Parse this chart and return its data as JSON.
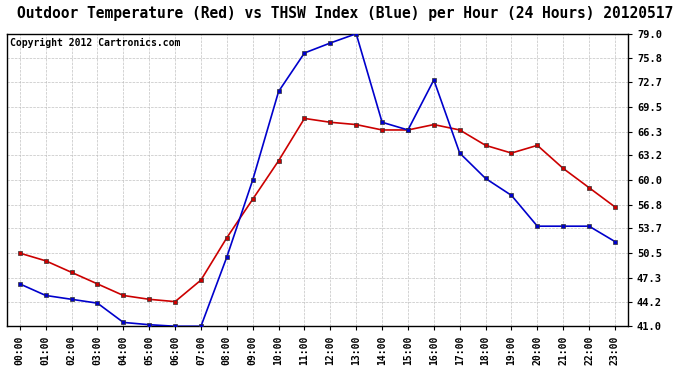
{
  "title": "Outdoor Temperature (Red) vs THSW Index (Blue) per Hour (24 Hours) 20120517",
  "copyright": "Copyright 2012 Cartronics.com",
  "hours": [
    "00:00",
    "01:00",
    "02:00",
    "03:00",
    "04:00",
    "05:00",
    "06:00",
    "07:00",
    "08:00",
    "09:00",
    "10:00",
    "11:00",
    "12:00",
    "13:00",
    "14:00",
    "15:00",
    "16:00",
    "17:00",
    "18:00",
    "19:00",
    "20:00",
    "21:00",
    "22:00",
    "23:00"
  ],
  "red_temp": [
    50.5,
    49.5,
    48.0,
    46.5,
    45.0,
    44.5,
    44.2,
    47.0,
    52.5,
    57.5,
    62.5,
    68.0,
    67.5,
    67.2,
    66.5,
    66.5,
    67.2,
    66.5,
    64.5,
    63.5,
    64.5,
    61.5,
    59.0,
    56.5
  ],
  "blue_thsw": [
    46.5,
    45.0,
    44.5,
    44.0,
    41.5,
    41.2,
    41.0,
    41.0,
    50.0,
    60.0,
    71.5,
    76.5,
    77.8,
    79.0,
    67.5,
    66.5,
    73.0,
    63.5,
    60.2,
    58.0,
    54.0,
    54.0,
    54.0,
    52.0
  ],
  "ylim": [
    41.0,
    79.0
  ],
  "yticks": [
    41.0,
    44.2,
    47.3,
    50.5,
    53.7,
    56.8,
    60.0,
    63.2,
    66.3,
    69.5,
    72.7,
    75.8,
    79.0
  ],
  "red_color": "#cc0000",
  "blue_color": "#0000cc",
  "bg_color": "#ffffff",
  "grid_color": "#bbbbbb",
  "title_fontsize": 10.5,
  "copyright_fontsize": 7.0
}
